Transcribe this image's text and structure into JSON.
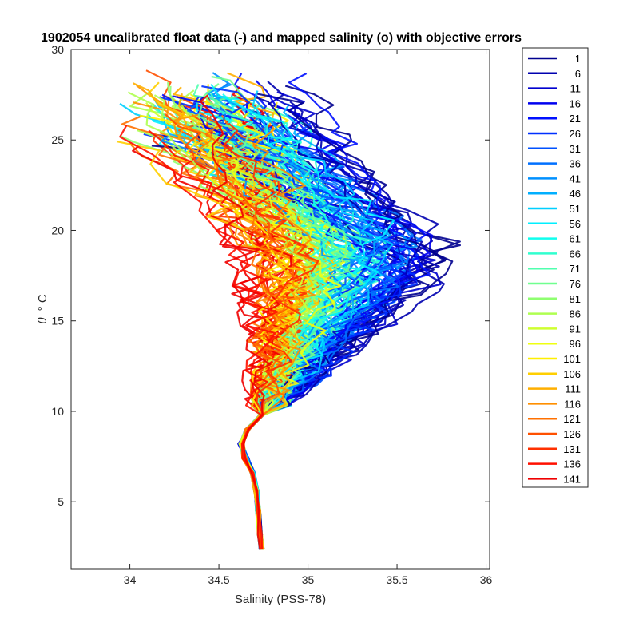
{
  "chart_data": {
    "type": "line",
    "title": "1902054 uncalibrated float data (-) and mapped salinity (o) with objective errors",
    "xlabel": "Salinity (PSS-78)",
    "ylabel_symbol": "θ",
    "ylabel_unit": "° C",
    "xlim": [
      33.67,
      36.02
    ],
    "ylim": [
      1.3,
      30
    ],
    "xticks": [
      "34",
      "34.5",
      "35",
      "35.5",
      "36"
    ],
    "yticks": [
      "5",
      "10",
      "15",
      "20",
      "25",
      "30"
    ],
    "grid": false,
    "legend_position": "outside-right",
    "series": [
      {
        "name": "1",
        "color": "#00008F"
      },
      {
        "name": "6",
        "color": "#0000AF"
      },
      {
        "name": "11",
        "color": "#0000CF"
      },
      {
        "name": "16",
        "color": "#0000EF"
      },
      {
        "name": "21",
        "color": "#0010FF"
      },
      {
        "name": "26",
        "color": "#0030FF"
      },
      {
        "name": "31",
        "color": "#0050FF"
      },
      {
        "name": "36",
        "color": "#0070FF"
      },
      {
        "name": "41",
        "color": "#0090FF"
      },
      {
        "name": "46",
        "color": "#00AFFF"
      },
      {
        "name": "51",
        "color": "#00CFFF"
      },
      {
        "name": "56",
        "color": "#00EFFF"
      },
      {
        "name": "61",
        "color": "#10FFEF"
      },
      {
        "name": "66",
        "color": "#30FFCF"
      },
      {
        "name": "71",
        "color": "#50FFAF"
      },
      {
        "name": "76",
        "color": "#70FF8F"
      },
      {
        "name": "81",
        "color": "#8FFF70"
      },
      {
        "name": "86",
        "color": "#AFFF50"
      },
      {
        "name": "91",
        "color": "#CFFF30"
      },
      {
        "name": "96",
        "color": "#EFFF10"
      },
      {
        "name": "101",
        "color": "#FFEF00"
      },
      {
        "name": "106",
        "color": "#FFCF00"
      },
      {
        "name": "111",
        "color": "#FFAF00"
      },
      {
        "name": "116",
        "color": "#FF8F00"
      },
      {
        "name": "121",
        "color": "#FF7000"
      },
      {
        "name": "126",
        "color": "#FF5000"
      },
      {
        "name": "131",
        "color": "#FF3000"
      },
      {
        "name": "136",
        "color": "#FF1000"
      },
      {
        "name": "141",
        "color": "#EF0000"
      }
    ],
    "profile_envelope": {
      "description_free_values": true,
      "deep_segment": [
        [
          34.73,
          2.4
        ],
        [
          34.72,
          3.0
        ],
        [
          34.72,
          4.0
        ],
        [
          34.71,
          5.0
        ],
        [
          34.71,
          6.0
        ],
        [
          34.67,
          7.0
        ],
        [
          34.63,
          8.0
        ],
        [
          34.66,
          9.0
        ],
        [
          34.75,
          10.0
        ]
      ],
      "shallow_fresh_end": [
        [
          34.3,
          14
        ],
        [
          34.15,
          20
        ],
        [
          33.95,
          26
        ],
        [
          33.85,
          28.5
        ]
      ],
      "shallow_salty_end": [
        [
          35.3,
          14
        ],
        [
          35.7,
          17
        ],
        [
          35.9,
          18.8
        ],
        [
          35.6,
          21
        ],
        [
          35.1,
          24
        ],
        [
          34.6,
          28
        ]
      ]
    }
  }
}
